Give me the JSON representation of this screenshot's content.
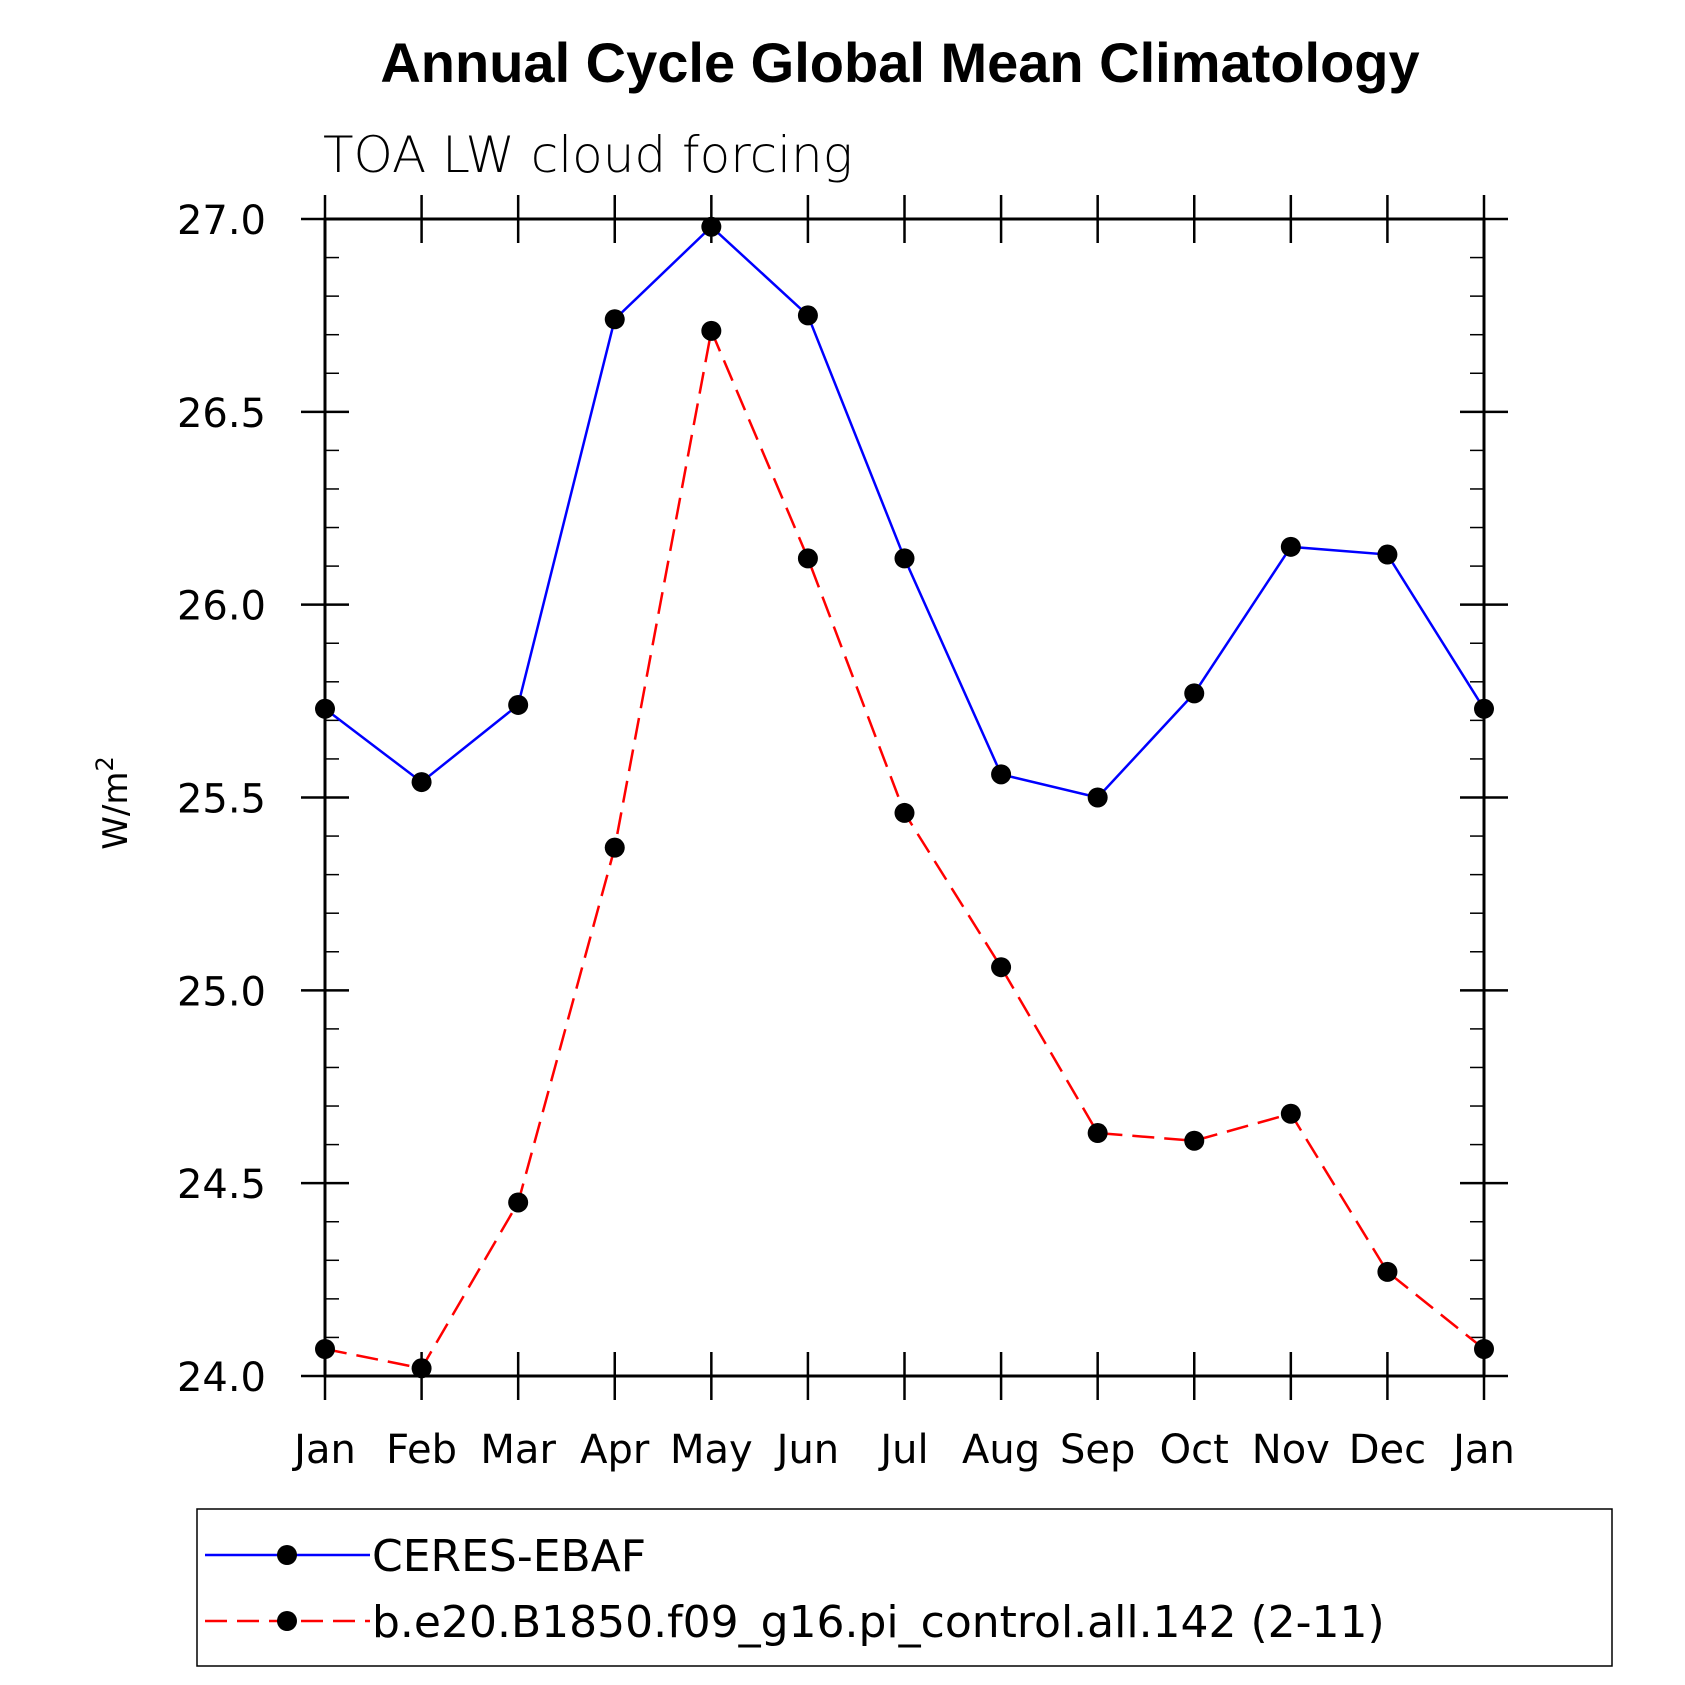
{
  "chart_data": {
    "type": "line",
    "title": "Annual Cycle Global Mean Climatology",
    "subtitle": "TOA LW cloud forcing",
    "ylabel": "W/m",
    "ylabel_sup": "2",
    "xlabel": "",
    "categories": [
      "Jan",
      "Feb",
      "Mar",
      "Apr",
      "May",
      "Jun",
      "Jul",
      "Aug",
      "Sep",
      "Oct",
      "Nov",
      "Dec",
      "Jan"
    ],
    "ylim": [
      24.0,
      27.0
    ],
    "yticks": [
      "24.0",
      "24.5",
      "25.0",
      "25.5",
      "26.0",
      "26.5",
      "27.0"
    ],
    "grid": false,
    "legend_position": "bottom",
    "series": [
      {
        "name": "CERES-EBAF",
        "color": "#0000ff",
        "line_style": "solid",
        "marker": "filled-circle",
        "values": [
          25.73,
          25.54,
          25.74,
          26.74,
          26.98,
          26.75,
          26.12,
          25.56,
          25.5,
          25.77,
          26.15,
          26.13,
          25.73
        ]
      },
      {
        "name": "b.e20.B1850.f09_g16.pi_control.all.142 (2-11)",
        "color": "#ff0000",
        "line_style": "dashed",
        "marker": "filled-circle",
        "values": [
          24.07,
          24.02,
          24.45,
          25.37,
          26.71,
          26.12,
          25.46,
          25.06,
          24.63,
          24.61,
          24.68,
          24.27,
          24.07
        ]
      }
    ]
  }
}
